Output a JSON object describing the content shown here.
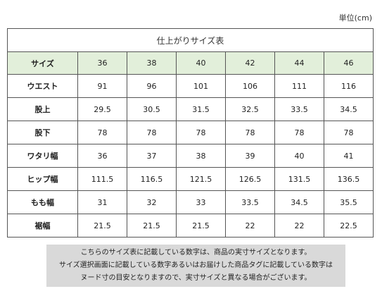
{
  "unit_label": "単位(cm)",
  "table": {
    "title": "仕上がりサイズ表",
    "header_label": "サイズ",
    "sizes": [
      "36",
      "38",
      "40",
      "42",
      "44",
      "46"
    ],
    "rows": [
      {
        "label": "ウエスト",
        "values": [
          "91",
          "96",
          "101",
          "106",
          "111",
          "116"
        ]
      },
      {
        "label": "股上",
        "values": [
          "29.5",
          "30.5",
          "31.5",
          "32.5",
          "33.5",
          "34.5"
        ]
      },
      {
        "label": "股下",
        "values": [
          "78",
          "78",
          "78",
          "78",
          "78",
          "78"
        ]
      },
      {
        "label": "ワタリ幅",
        "values": [
          "36",
          "37",
          "38",
          "39",
          "40",
          "41"
        ]
      },
      {
        "label": "ヒップ幅",
        "values": [
          "111.5",
          "116.5",
          "121.5",
          "126.5",
          "131.5",
          "136.5"
        ]
      },
      {
        "label": "もも幅",
        "values": [
          "31",
          "32",
          "33",
          "33.5",
          "34.5",
          "35.5"
        ]
      },
      {
        "label": "裾幅",
        "values": [
          "21.5",
          "21.5",
          "21.5",
          "22",
          "22",
          "22.5"
        ]
      }
    ],
    "header_color": "#e2efda"
  },
  "note": {
    "lines": [
      "こちらのサイズ表に記載している数字は、商品の実寸サイズとなります。",
      "サイズ選択画面に記載している数字あるいはお届けした商品タグに記載している数字は",
      "ヌード寸の目安となりますので、実寸サイズと異なる場合がございます。"
    ],
    "background": "#d9d9d9"
  }
}
